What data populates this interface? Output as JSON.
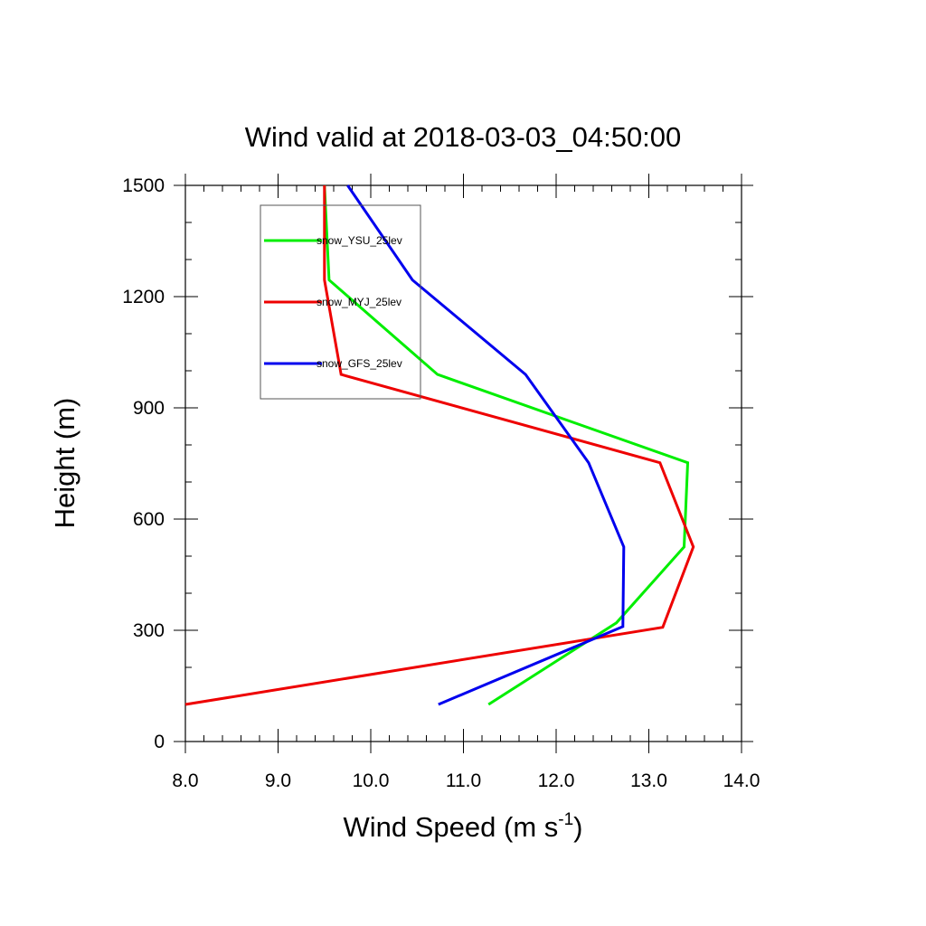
{
  "chart_data": {
    "type": "line",
    "title": "Wind valid at 2018-03-03_04:50:00",
    "xlabel": "Wind Speed (m s",
    "xlabel_superscript": "-1",
    "xlabel_suffix": ")",
    "ylabel": "Height (m)",
    "xlim": [
      8.0,
      14.0
    ],
    "ylim": [
      0,
      1500
    ],
    "x_ticks": [
      "8.0",
      "9.0",
      "10.0",
      "11.0",
      "12.0",
      "13.0",
      "14.0"
    ],
    "y_ticks": [
      "0",
      "300",
      "600",
      "900",
      "1200",
      "1500"
    ],
    "grid": false,
    "legend_placement": "top-left inside",
    "series": [
      {
        "name": "snow_YSU_25lev",
        "color": "#00ee00",
        "points": [
          [
            11.27,
            100
          ],
          [
            12.65,
            320
          ],
          [
            13.38,
            525
          ],
          [
            13.42,
            752
          ],
          [
            10.72,
            990
          ],
          [
            9.55,
            1245
          ],
          [
            9.5,
            1500
          ]
        ]
      },
      {
        "name": "snow_MYJ_25lev",
        "color": "#ee0000",
        "points": [
          [
            8.0,
            100
          ],
          [
            13.15,
            308
          ],
          [
            13.48,
            525
          ],
          [
            13.12,
            752
          ],
          [
            9.68,
            990
          ],
          [
            9.5,
            1245
          ],
          [
            9.5,
            1500
          ]
        ]
      },
      {
        "name": "snow_GFS_25lev",
        "color": "#0000ee",
        "points": [
          [
            10.73,
            100
          ],
          [
            12.72,
            310
          ],
          [
            12.73,
            525
          ],
          [
            12.35,
            752
          ],
          [
            11.67,
            990
          ],
          [
            10.45,
            1245
          ],
          [
            9.75,
            1500
          ]
        ]
      }
    ]
  }
}
